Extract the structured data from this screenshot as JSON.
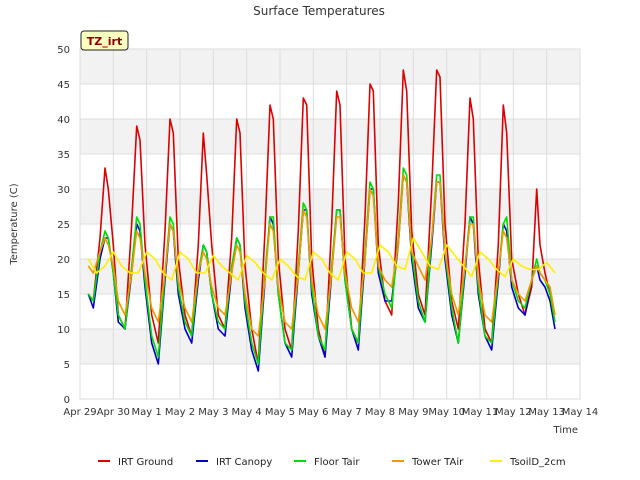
{
  "chart_data": {
    "type": "line",
    "title": "Surface Temperatures",
    "xlabel": "Time",
    "ylabel": "Temperature (C)",
    "badge": "TZ_irt",
    "grid": true,
    "legend_position": "bottom",
    "xlim": [
      0,
      15
    ],
    "ylim": [
      0,
      50
    ],
    "x_ticks": [
      {
        "v": 0,
        "label": "Apr 29"
      },
      {
        "v": 1,
        "label": "Apr 30"
      },
      {
        "v": 2,
        "label": "May 1"
      },
      {
        "v": 3,
        "label": "May 2"
      },
      {
        "v": 4,
        "label": "May 3"
      },
      {
        "v": 5,
        "label": "May 4"
      },
      {
        "v": 6,
        "label": "May 5"
      },
      {
        "v": 7,
        "label": "May 6"
      },
      {
        "v": 8,
        "label": "May 7"
      },
      {
        "v": 9,
        "label": "May 8"
      },
      {
        "v": 10,
        "label": "May 9"
      },
      {
        "v": 11,
        "label": "May 10"
      },
      {
        "v": 12,
        "label": "May 11"
      },
      {
        "v": 13,
        "label": "May 12"
      },
      {
        "v": 14,
        "label": "May 13"
      },
      {
        "v": 15,
        "label": "May 14"
      }
    ],
    "y_ticks": [
      0,
      5,
      10,
      15,
      20,
      25,
      30,
      35,
      40,
      45,
      50
    ],
    "series": [
      {
        "name": "IRT Ground",
        "color": "#dd0000",
        "x": [
          0.25,
          0.4,
          0.6,
          0.75,
          0.85,
          1.0,
          1.15,
          1.35,
          1.55,
          1.7,
          1.8,
          1.95,
          2.15,
          2.35,
          2.55,
          2.7,
          2.8,
          2.95,
          3.15,
          3.35,
          3.55,
          3.7,
          3.8,
          3.95,
          4.15,
          4.35,
          4.55,
          4.7,
          4.8,
          4.95,
          5.15,
          5.35,
          5.55,
          5.7,
          5.8,
          5.95,
          6.15,
          6.35,
          6.55,
          6.7,
          6.8,
          6.95,
          7.15,
          7.35,
          7.55,
          7.7,
          7.8,
          7.95,
          8.15,
          8.35,
          8.55,
          8.7,
          8.8,
          8.95,
          9.15,
          9.35,
          9.55,
          9.7,
          9.8,
          9.95,
          10.15,
          10.35,
          10.55,
          10.7,
          10.8,
          10.95,
          11.15,
          11.35,
          11.55,
          11.7,
          11.8,
          11.95,
          12.15,
          12.35,
          12.55,
          12.7,
          12.8,
          12.95,
          13.15,
          13.35,
          13.55,
          13.7,
          13.8,
          13.95,
          14.1,
          14.25
        ],
        "y": [
          15,
          14,
          23,
          33,
          30,
          22,
          12,
          10,
          25,
          39,
          37,
          22,
          12,
          8,
          24,
          40,
          38,
          20,
          12,
          9,
          22,
          38,
          32,
          22,
          12,
          10,
          23,
          40,
          38,
          19,
          10,
          5,
          24,
          42,
          40,
          20,
          10,
          7,
          24,
          43,
          42,
          20,
          10,
          6,
          25,
          44,
          42,
          20,
          10,
          8,
          26,
          45,
          44,
          22,
          14,
          12,
          28,
          47,
          44,
          24,
          15,
          12,
          30,
          47,
          46,
          25,
          14,
          10,
          25,
          43,
          40,
          20,
          10,
          8,
          22,
          42,
          38,
          20,
          15,
          12,
          16,
          30,
          22,
          18,
          15,
          12
        ]
      },
      {
        "name": "IRT Canopy",
        "color": "#0000cc",
        "x": [
          0.25,
          0.4,
          0.6,
          0.75,
          0.85,
          1.0,
          1.15,
          1.35,
          1.55,
          1.7,
          1.8,
          1.95,
          2.15,
          2.35,
          2.55,
          2.7,
          2.8,
          2.95,
          3.15,
          3.35,
          3.55,
          3.7,
          3.8,
          3.95,
          4.15,
          4.35,
          4.55,
          4.7,
          4.8,
          4.95,
          5.15,
          5.35,
          5.55,
          5.7,
          5.8,
          5.95,
          6.15,
          6.35,
          6.55,
          6.7,
          6.8,
          6.95,
          7.15,
          7.35,
          7.55,
          7.7,
          7.8,
          7.95,
          8.15,
          8.35,
          8.55,
          8.7,
          8.8,
          8.95,
          9.15,
          9.35,
          9.55,
          9.7,
          9.8,
          9.95,
          10.15,
          10.35,
          10.55,
          10.7,
          10.8,
          10.95,
          11.15,
          11.35,
          11.55,
          11.7,
          11.8,
          11.95,
          12.15,
          12.35,
          12.55,
          12.7,
          12.8,
          12.95,
          13.15,
          13.35,
          13.55,
          13.7,
          13.8,
          13.95,
          14.1,
          14.25
        ],
        "y": [
          15,
          13,
          20,
          23,
          23,
          18,
          11,
          10,
          18,
          25,
          24,
          16,
          8,
          5,
          17,
          25,
          24,
          15,
          10,
          8,
          17,
          22,
          21,
          15,
          10,
          9,
          18,
          23,
          22,
          13,
          7,
          4,
          17,
          26,
          25,
          15,
          8,
          6,
          18,
          27,
          27,
          15,
          9,
          6,
          18,
          27,
          27,
          17,
          10,
          7,
          20,
          30,
          30,
          18,
          14,
          14,
          22,
          32,
          31,
          20,
          13,
          11,
          22,
          31,
          31,
          20,
          12,
          8,
          18,
          26,
          25,
          15,
          9,
          7,
          17,
          25,
          24,
          16,
          13,
          12,
          17,
          19,
          17,
          16,
          14,
          10
        ]
      },
      {
        "name": "Floor Tair",
        "color": "#00dd00",
        "x": [
          0.25,
          0.4,
          0.6,
          0.75,
          0.85,
          1.0,
          1.15,
          1.35,
          1.55,
          1.7,
          1.8,
          1.95,
          2.15,
          2.35,
          2.55,
          2.7,
          2.8,
          2.95,
          3.15,
          3.35,
          3.55,
          3.7,
          3.8,
          3.95,
          4.15,
          4.35,
          4.55,
          4.7,
          4.8,
          4.95,
          5.15,
          5.35,
          5.55,
          5.7,
          5.8,
          5.95,
          6.15,
          6.35,
          6.55,
          6.7,
          6.8,
          6.95,
          7.15,
          7.35,
          7.55,
          7.7,
          7.8,
          7.95,
          8.15,
          8.35,
          8.55,
          8.7,
          8.8,
          8.95,
          9.15,
          9.35,
          9.55,
          9.7,
          9.8,
          9.95,
          10.15,
          10.35,
          10.55,
          10.7,
          10.8,
          10.95,
          11.15,
          11.35,
          11.55,
          11.7,
          11.8,
          11.95,
          12.15,
          12.35,
          12.55,
          12.7,
          12.8,
          12.95,
          13.15,
          13.35,
          13.55,
          13.7,
          13.8,
          13.95,
          14.1,
          14.25
        ],
        "y": [
          15,
          14,
          21,
          24,
          23,
          18,
          12,
          10,
          19,
          26,
          25,
          17,
          9,
          6,
          18,
          26,
          25,
          16,
          11,
          9,
          18,
          22,
          21,
          15,
          11,
          10,
          19,
          23,
          22,
          14,
          8,
          5,
          18,
          26,
          26,
          15,
          8,
          7,
          19,
          28,
          27,
          16,
          9,
          7,
          19,
          27,
          27,
          17,
          10,
          8,
          21,
          31,
          30,
          19,
          15,
          13,
          23,
          33,
          32,
          21,
          14,
          11,
          23,
          32,
          32,
          21,
          13,
          8,
          19,
          26,
          26,
          16,
          9,
          8,
          18,
          25,
          26,
          17,
          14,
          13,
          17,
          20,
          18,
          17,
          15,
          11
        ]
      },
      {
        "name": "Tower TAir",
        "color": "#ee9900",
        "x": [
          0.25,
          0.4,
          0.6,
          0.75,
          0.85,
          1.0,
          1.15,
          1.35,
          1.55,
          1.7,
          1.8,
          1.95,
          2.15,
          2.35,
          2.55,
          2.7,
          2.8,
          2.95,
          3.15,
          3.35,
          3.55,
          3.7,
          3.8,
          3.95,
          4.15,
          4.35,
          4.55,
          4.7,
          4.8,
          4.95,
          5.15,
          5.35,
          5.55,
          5.7,
          5.8,
          5.95,
          6.15,
          6.35,
          6.55,
          6.7,
          6.8,
          6.95,
          7.15,
          7.35,
          7.55,
          7.7,
          7.8,
          7.95,
          8.15,
          8.35,
          8.55,
          8.7,
          8.8,
          8.95,
          9.15,
          9.35,
          9.55,
          9.7,
          9.8,
          9.95,
          10.15,
          10.35,
          10.55,
          10.7,
          10.8,
          10.95,
          11.15,
          11.35,
          11.55,
          11.7,
          11.8,
          11.95,
          12.15,
          12.35,
          12.55,
          12.7,
          12.8,
          12.95,
          13.15,
          13.35,
          13.55,
          13.7,
          13.8,
          13.95,
          14.1,
          14.25
        ],
        "y": [
          19,
          18,
          21,
          23,
          22,
          19,
          14,
          12,
          18,
          24,
          23,
          18,
          13,
          11,
          18,
          25,
          24,
          17,
          13,
          11,
          18,
          21,
          20,
          16,
          13,
          12,
          18,
          22,
          21,
          15,
          10,
          9,
          17,
          25,
          24,
          16,
          11,
          10,
          18,
          27,
          26,
          17,
          12,
          10,
          18,
          26,
          26,
          18,
          13,
          11,
          20,
          30,
          29,
          19,
          17,
          16,
          22,
          32,
          31,
          21,
          19,
          17,
          23,
          31,
          31,
          21,
          15,
          12,
          19,
          25,
          25,
          17,
          12,
          11,
          18,
          24,
          23,
          17,
          15,
          14,
          17,
          19,
          18,
          17,
          16,
          12
        ]
      },
      {
        "name": "TsoilD_2cm",
        "color": "#ffee00",
        "x": [
          0.25,
          0.5,
          0.75,
          1.0,
          1.25,
          1.5,
          1.75,
          2.0,
          2.25,
          2.5,
          2.75,
          3.0,
          3.25,
          3.5,
          3.75,
          4.0,
          4.25,
          4.5,
          4.75,
          5.0,
          5.25,
          5.5,
          5.75,
          6.0,
          6.25,
          6.5,
          6.75,
          7.0,
          7.25,
          7.5,
          7.75,
          8.0,
          8.25,
          8.5,
          8.75,
          9.0,
          9.25,
          9.5,
          9.75,
          10.0,
          10.25,
          10.5,
          10.75,
          11.0,
          11.25,
          11.5,
          11.75,
          12.0,
          12.25,
          12.5,
          12.75,
          13.0,
          13.25,
          13.5,
          13.75,
          14.0,
          14.25
        ],
        "y": [
          20,
          18,
          19,
          21,
          19,
          18,
          18,
          21,
          20,
          18,
          17,
          21,
          20,
          18,
          18,
          20.5,
          19,
          18,
          17,
          20.5,
          19.5,
          18,
          17,
          20,
          19,
          17.5,
          17,
          21,
          20,
          18,
          17,
          21,
          20,
          18,
          18,
          22,
          21,
          19,
          18.5,
          23,
          21,
          19,
          18.5,
          22,
          20.5,
          19,
          17.5,
          21,
          20,
          18.5,
          17.5,
          20,
          19,
          18.5,
          18.5,
          19.5,
          18
        ]
      }
    ]
  }
}
